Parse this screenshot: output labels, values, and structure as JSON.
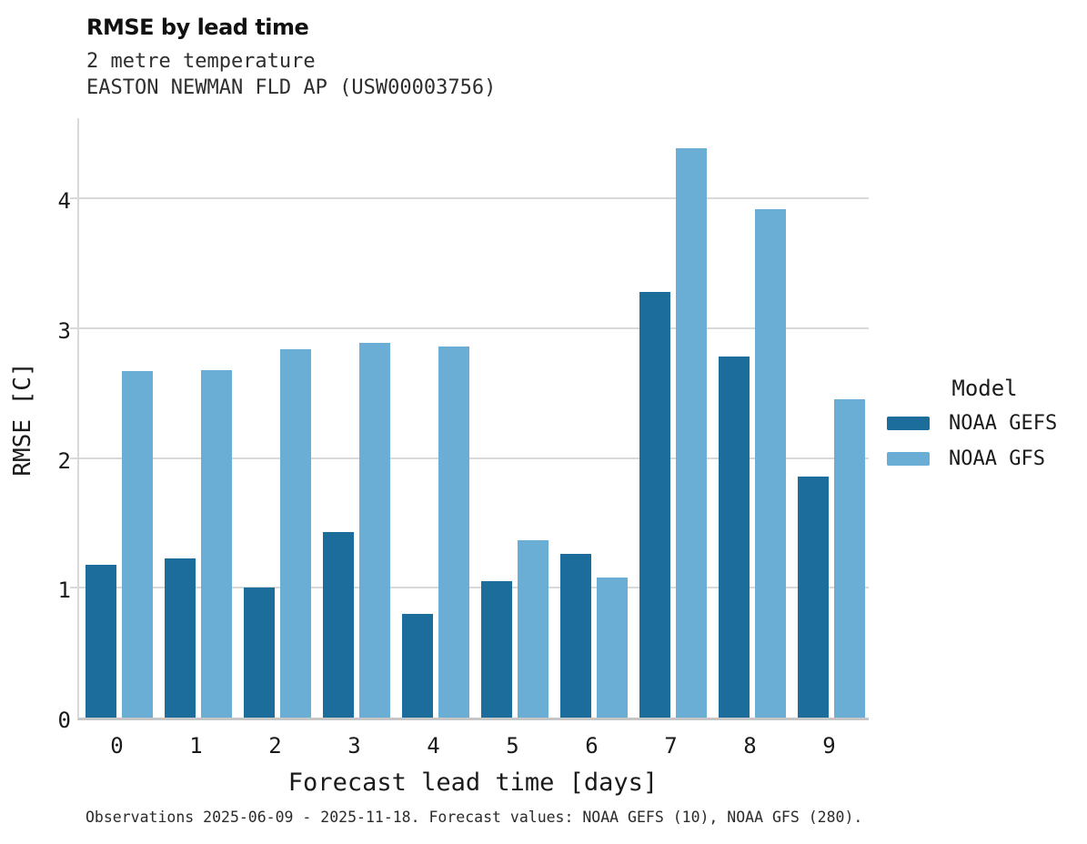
{
  "header": {
    "title": "RMSE by lead time",
    "subtitle1": "2 metre temperature",
    "subtitle2": "EASTON NEWMAN FLD AP (USW00003756)"
  },
  "chart_data": {
    "type": "bar",
    "title": "RMSE by lead time",
    "subtitle": "2 metre temperature — EASTON NEWMAN FLD AP (USW00003756)",
    "categories": [
      "0",
      "1",
      "2",
      "3",
      "4",
      "5",
      "6",
      "7",
      "8",
      "9"
    ],
    "series": [
      {
        "name": "NOAA GEFS",
        "color": "#1c6d9c",
        "values": [
          1.18,
          1.23,
          1.0,
          1.43,
          0.8,
          1.05,
          1.26,
          3.28,
          2.78,
          1.86
        ]
      },
      {
        "name": "NOAA GFS",
        "color": "#6aaed6",
        "values": [
          2.67,
          2.68,
          2.84,
          2.89,
          2.86,
          1.37,
          1.08,
          4.39,
          3.92,
          2.45
        ]
      }
    ],
    "xlabel": "Forecast lead time [days]",
    "ylabel": "RMSE [C]",
    "ylim": [
      0,
      4.64
    ],
    "yticks": [
      0,
      1,
      2,
      3,
      4
    ],
    "grid": true,
    "legend_title": "Model",
    "legend_position": "right"
  },
  "footer": {
    "caption": "Observations 2025-06-09 - 2025-11-18. Forecast values: NOAA GEFS (10), NOAA GFS (280)."
  }
}
